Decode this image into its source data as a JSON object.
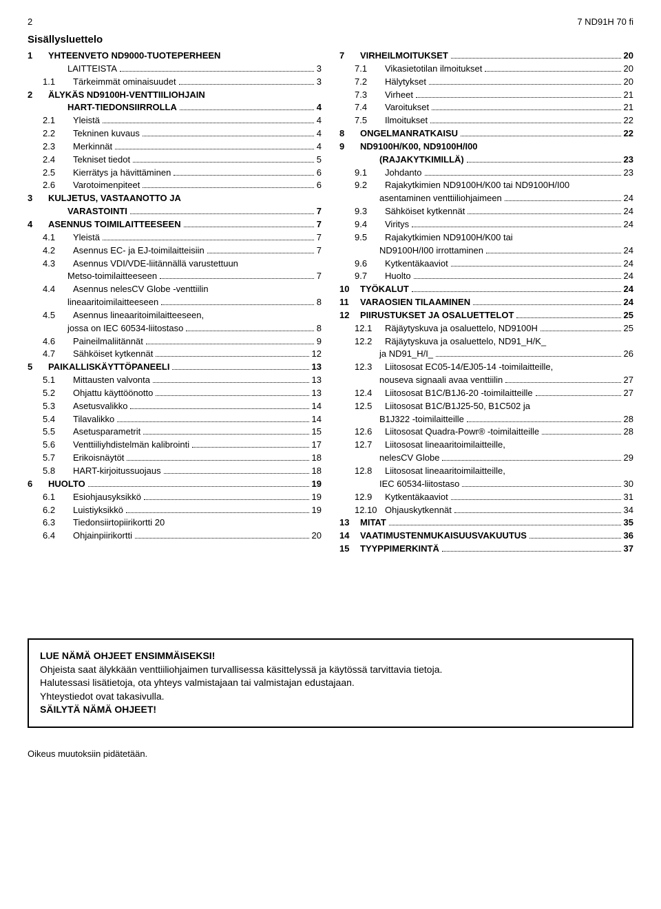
{
  "header": {
    "page_num": "2",
    "doc_code": "7 ND91H 70 fi"
  },
  "title": "Sisällysluettelo",
  "left": [
    {
      "t": "top",
      "n": "1",
      "l": "YHTEENVETO ND9000-TUOTEPERHEEN"
    },
    {
      "t": "cont",
      "l": "LAITTEISTA",
      "p": "3"
    },
    {
      "t": "sub",
      "n": "1.1",
      "l": "Tärkeimmät ominaisuudet",
      "p": "3"
    },
    {
      "t": "top",
      "n": "2",
      "l": "ÄLYKÄS ND9100H-VENTTIILIOHJAIN"
    },
    {
      "t": "cont",
      "l": "HART-TIEDONSIIRROLLA",
      "p": "4",
      "bold": true
    },
    {
      "t": "sub",
      "n": "2.1",
      "l": "Yleistä",
      "p": "4"
    },
    {
      "t": "sub",
      "n": "2.2",
      "l": "Tekninen kuvaus",
      "p": "4"
    },
    {
      "t": "sub",
      "n": "2.3",
      "l": "Merkinnät",
      "p": "4"
    },
    {
      "t": "sub",
      "n": "2.4",
      "l": "Tekniset tiedot",
      "p": "5"
    },
    {
      "t": "sub",
      "n": "2.5",
      "l": "Kierrätys ja hävittäminen",
      "p": "6"
    },
    {
      "t": "sub",
      "n": "2.6",
      "l": "Varotoimenpiteet",
      "p": "6"
    },
    {
      "t": "top",
      "n": "3",
      "l": "KULJETUS, VASTAANOTTO JA"
    },
    {
      "t": "cont",
      "l": "VARASTOINTI",
      "p": "7",
      "bold": true
    },
    {
      "t": "top",
      "n": "4",
      "l": "ASENNUS TOIMILAITTEESEEN",
      "p": "7"
    },
    {
      "t": "sub",
      "n": "4.1",
      "l": "Yleistä",
      "p": "7"
    },
    {
      "t": "sub",
      "n": "4.2",
      "l": "Asennus EC- ja EJ-toimilaitteisiin",
      "p": "7"
    },
    {
      "t": "sub",
      "n": "4.3",
      "l": "Asennus VDI/VDE-liitännällä varustettuun"
    },
    {
      "t": "cont",
      "l": "Metso-toimilaitteeseen",
      "p": "7"
    },
    {
      "t": "sub",
      "n": "4.4",
      "l": "Asennus nelesCV Globe -venttiilin"
    },
    {
      "t": "cont",
      "l": "lineaaritoimilaitteeseen",
      "p": "8"
    },
    {
      "t": "sub",
      "n": "4.5",
      "l": "Asennus lineaaritoimilaitteeseen,"
    },
    {
      "t": "cont",
      "l": "jossa on IEC 60534-liitostaso",
      "p": "8"
    },
    {
      "t": "sub",
      "n": "4.6",
      "l": "Paineilmaliitännät",
      "p": "9"
    },
    {
      "t": "sub",
      "n": "4.7",
      "l": "Sähköiset kytkennät",
      "p": "12"
    },
    {
      "t": "top",
      "n": "5",
      "l": "PAIKALLISKÄYTTÖPANEELI",
      "p": "13"
    },
    {
      "t": "sub",
      "n": "5.1",
      "l": "Mittausten valvonta",
      "p": "13"
    },
    {
      "t": "sub",
      "n": "5.2",
      "l": "Ohjattu käyttöönotto",
      "p": "13"
    },
    {
      "t": "sub",
      "n": "5.3",
      "l": "Asetusvalikko",
      "p": "14"
    },
    {
      "t": "sub",
      "n": "5.4",
      "l": "Tilavalikko",
      "p": "14"
    },
    {
      "t": "sub",
      "n": "5.5",
      "l": "Asetusparametrit",
      "p": "15"
    },
    {
      "t": "sub",
      "n": "5.6",
      "l": "Venttiiliyhdistelmän kalibrointi",
      "p": "17"
    },
    {
      "t": "sub",
      "n": "5.7",
      "l": "Erikoisnäytöt",
      "p": "18"
    },
    {
      "t": "sub",
      "n": "5.8",
      "l": "HART-kirjoitussuojaus",
      "p": "18"
    },
    {
      "t": "top",
      "n": "6",
      "l": "HUOLTO",
      "p": "19"
    },
    {
      "t": "sub",
      "n": "6.1",
      "l": "Esiohjausyksikkö",
      "p": "19"
    },
    {
      "t": "sub",
      "n": "6.2",
      "l": "Luistiyksikkö",
      "p": "19"
    },
    {
      "t": "sub",
      "n": "6.3",
      "l": "Tiedonsiirtopiirikortti 20"
    },
    {
      "t": "sub",
      "n": "6.4",
      "l": "Ohjainpiirikortti",
      "p": "20"
    }
  ],
  "right": [
    {
      "t": "top",
      "n": "7",
      "l": "VIRHEILMOITUKSET",
      "p": "20"
    },
    {
      "t": "sub",
      "n": "7.1",
      "l": "Vikasietotilan ilmoitukset",
      "p": "20"
    },
    {
      "t": "sub",
      "n": "7.2",
      "l": "Hälytykset",
      "p": "20"
    },
    {
      "t": "sub",
      "n": "7.3",
      "l": "Virheet",
      "p": "21"
    },
    {
      "t": "sub",
      "n": "7.4",
      "l": "Varoitukset",
      "p": "21"
    },
    {
      "t": "sub",
      "n": "7.5",
      "l": "Ilmoitukset",
      "p": "22"
    },
    {
      "t": "top",
      "n": "8",
      "l": "ONGELMANRATKAISU",
      "p": "22"
    },
    {
      "t": "top",
      "n": "9",
      "l": "ND9100H/K00, ND9100H/I00"
    },
    {
      "t": "cont",
      "l": "(RAJAKYTKIMILLÄ)",
      "p": "23",
      "bold": true
    },
    {
      "t": "sub",
      "n": "9.1",
      "l": "Johdanto",
      "p": "23"
    },
    {
      "t": "sub",
      "n": "9.2",
      "l": "Rajakytkimien ND9100H/K00 tai ND9100H/I00"
    },
    {
      "t": "cont",
      "l": "asentaminen venttiiliohjaimeen",
      "p": "24"
    },
    {
      "t": "sub",
      "n": "9.3",
      "l": "Sähköiset kytkennät",
      "p": "24"
    },
    {
      "t": "sub",
      "n": "9.4",
      "l": "Viritys",
      "p": "24"
    },
    {
      "t": "sub",
      "n": "9.5",
      "l": "Rajakytkimien ND9100H/K00 tai"
    },
    {
      "t": "cont",
      "l": "ND9100H/I00 irrottaminen",
      "p": "24"
    },
    {
      "t": "sub",
      "n": "9.6",
      "l": "Kytkentäkaaviot",
      "p": "24"
    },
    {
      "t": "sub",
      "n": "9.7",
      "l": "Huolto",
      "p": "24"
    },
    {
      "t": "top",
      "n": "10",
      "l": "TYÖKALUT",
      "p": "24"
    },
    {
      "t": "top",
      "n": "11",
      "l": "VARAOSIEN TILAAMINEN",
      "p": "24"
    },
    {
      "t": "top",
      "n": "12",
      "l": "PIIRUSTUKSET JA OSALUETTELOT",
      "p": "25"
    },
    {
      "t": "sub",
      "n": "12.1",
      "l": "Räjäytyskuva ja osaluettelo, ND9100H",
      "p": "25"
    },
    {
      "t": "sub",
      "n": "12.2",
      "l": "Räjäytyskuva ja osaluettelo, ND91_H/K_"
    },
    {
      "t": "cont",
      "l": "ja ND91_H/I_",
      "p": "26"
    },
    {
      "t": "sub",
      "n": "12.3",
      "l": "Liitososat EC05-14/EJ05-14 -toimilaitteille,"
    },
    {
      "t": "cont",
      "l": "nouseva signaali avaa venttiilin",
      "p": "27"
    },
    {
      "t": "sub",
      "n": "12.4",
      "l": "Liitososat B1C/B1J6-20 -toimilaitteille",
      "p": "27"
    },
    {
      "t": "sub",
      "n": "12.5",
      "l": "Liitososat B1C/B1J25-50, B1C502 ja"
    },
    {
      "t": "cont",
      "l": "B1J322 -toimilaitteille",
      "p": "28"
    },
    {
      "t": "sub",
      "n": "12.6",
      "l": "Liitososat Quadra-Powr® -toimilaitteille",
      "p": "28"
    },
    {
      "t": "sub",
      "n": "12.7",
      "l": "Liitososat lineaaritoimilaitteille,"
    },
    {
      "t": "cont",
      "l": "nelesCV Globe",
      "p": "29"
    },
    {
      "t": "sub",
      "n": "12.8",
      "l": "Liitososat lineaaritoimilaitteille,"
    },
    {
      "t": "cont",
      "l": "IEC 60534-liitostaso",
      "p": "30"
    },
    {
      "t": "sub",
      "n": "12.9",
      "l": "Kytkentäkaaviot",
      "p": "31"
    },
    {
      "t": "sub",
      "n": "12.10",
      "l": "Ohjauskytkennät",
      "p": "34"
    },
    {
      "t": "top",
      "n": "13",
      "l": "MITAT",
      "p": "35"
    },
    {
      "t": "top",
      "n": "14",
      "l": "VAATIMUSTENMUKAISUUSVAKUUTUS",
      "p": "36"
    },
    {
      "t": "top",
      "n": "15",
      "l": "TYYPPIMERKINTÄ",
      "p": "37"
    }
  ],
  "notice": {
    "line1": "LUE NÄMÄ OHJEET ENSIMMÄISEKSI!",
    "line2": "Ohjeista saat älykkään venttiiliohjaimen turvallisessa käsittelyssä ja käytössä tarvittavia tietoja.",
    "line3": "Halutessasi lisätietoja, ota yhteys valmistajaan tai valmistajan edustajaan.",
    "line4": "Yhteystiedot ovat takasivulla.",
    "line5": "SÄILYTÄ NÄMÄ OHJEET!"
  },
  "footer": "Oikeus muutoksiin pidätetään."
}
